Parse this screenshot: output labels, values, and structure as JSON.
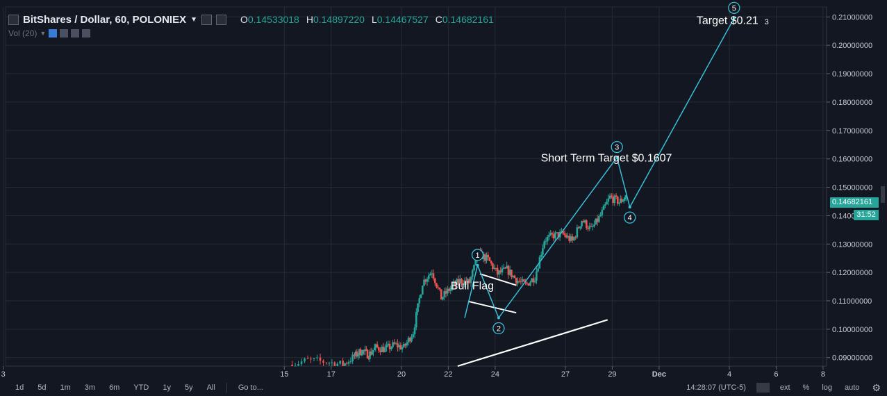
{
  "header": {
    "symbol": "BitShares / Dollar, 60, POLONIEX",
    "ohlc": [
      {
        "key": "O",
        "value": "0.14533018"
      },
      {
        "key": "H",
        "value": "0.14897220"
      },
      {
        "key": "L",
        "value": "0.14467527"
      },
      {
        "key": "C",
        "value": "0.14682161"
      }
    ]
  },
  "volume_label": "Vol (20)",
  "price_tag": "0.14682161",
  "time_tag": "31:52",
  "toolbar": {
    "timeframes": [
      "1d",
      "5d",
      "1m",
      "3m",
      "6m",
      "YTD",
      "1y",
      "5y",
      "All"
    ],
    "goto": "Go to...",
    "clock": "14:28:07 (UTC-5)",
    "right": [
      "ext",
      "%",
      "log",
      "auto"
    ]
  },
  "colors": {
    "bg": "#131722",
    "grid": "#262b36",
    "up": "#26a69a",
    "down": "#ef5350",
    "wave": "#38c0d9",
    "flag": "#ffffff"
  },
  "chart_data": {
    "type": "line",
    "title": "BitShares / Dollar, 60, POLONIEX",
    "price_axis": {
      "ticks": [
        "0.21000000",
        "0.20000000",
        "0.19000000",
        "0.18000000",
        "0.17000000",
        "0.16000000",
        "0.15000000",
        "0.14000000",
        "0.13000000",
        "0.12000000",
        "0.11000000",
        "0.10000000",
        "0.09000000"
      ],
      "min": 0.087,
      "max": 0.2135,
      "grid": true
    },
    "time_axis": {
      "ticks": [
        "3",
        "15",
        "17",
        "20",
        "22",
        "24",
        "27",
        "29",
        "Dec",
        "4",
        "6",
        "8"
      ],
      "day_positions": [
        0,
        12,
        14,
        17,
        19,
        21,
        24,
        26,
        28,
        31,
        33,
        35
      ]
    },
    "price_path": {
      "days": [
        12.2,
        13,
        13.8,
        14.5,
        15,
        15.3,
        15.6,
        15.9,
        16.3,
        16.7,
        17.1,
        17.5,
        17.9,
        18.3,
        18.7,
        19.1,
        19.5,
        19.9,
        20.3,
        20.7,
        21.1,
        21.5,
        21.9,
        22.3,
        22.7,
        23.1,
        23.5,
        23.9,
        24.3,
        24.7,
        25.1,
        25.5,
        25.9,
        26.3,
        26.6
      ],
      "close": [
        0.0875,
        0.089,
        0.0885,
        0.0875,
        0.0905,
        0.0925,
        0.091,
        0.0935,
        0.093,
        0.0945,
        0.0935,
        0.099,
        0.1165,
        0.1205,
        0.111,
        0.1145,
        0.117,
        0.1165,
        0.1265,
        0.1245,
        0.1195,
        0.121,
        0.1175,
        0.1155,
        0.1185,
        0.1315,
        0.133,
        0.1335,
        0.131,
        0.1385,
        0.135,
        0.14,
        0.1465,
        0.1448,
        0.1468
      ]
    },
    "elliott_wave": {
      "points": [
        {
          "label": "1",
          "day": 20.25,
          "price": 0.1225
        },
        {
          "label": "2",
          "day": 21.15,
          "price": 0.104
        },
        {
          "label": "3",
          "day": 26.2,
          "price": 0.1605
        },
        {
          "label": "4",
          "day": 26.75,
          "price": 0.143
        },
        {
          "label": "5",
          "day": 31.2,
          "price": 0.2095
        }
      ],
      "start": {
        "day": 19.7,
        "price": 0.104
      }
    },
    "bull_flag": {
      "upper": [
        {
          "day": 20.35,
          "price": 0.1195
        },
        {
          "day": 21.9,
          "price": 0.1155
        }
      ],
      "lower": [
        {
          "day": 19.85,
          "price": 0.1098
        },
        {
          "day": 21.9,
          "price": 0.1058
        }
      ]
    },
    "support_line": [
      {
        "day": 19.4,
        "price": 0.087
      },
      {
        "day": 25.8,
        "price": 0.1033
      }
    ],
    "annotations": [
      {
        "text": "Bull Flag",
        "day": 19.1,
        "price": 0.1155
      },
      {
        "text": "Short Term Target $0.1607",
        "day": 22.95,
        "price": 0.1605
      },
      {
        "text": "Target $0.21",
        "day": 29.6,
        "price": 0.209
      },
      {
        "text": "3",
        "day": 32.5,
        "price": 0.2088
      }
    ]
  }
}
